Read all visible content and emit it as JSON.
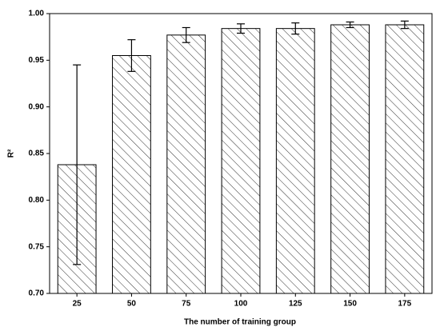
{
  "chart_data": {
    "type": "bar",
    "x_label": "The number of training group",
    "y_label": "R²",
    "categories": [
      "25",
      "50",
      "75",
      "100",
      "125",
      "150",
      "175"
    ],
    "values": [
      0.838,
      0.955,
      0.977,
      0.984,
      0.984,
      0.988,
      0.988
    ],
    "errors": [
      0.107,
      0.017,
      0.008,
      0.005,
      0.006,
      0.003,
      0.004
    ],
    "ylim": [
      0.7,
      1.0
    ],
    "yticks": [
      {
        "value": 0.7,
        "label": "0.70"
      },
      {
        "value": 0.75,
        "label": "0.75"
      },
      {
        "value": 0.8,
        "label": "0.80"
      },
      {
        "value": 0.85,
        "label": "0.85"
      },
      {
        "value": 0.9,
        "label": "0.90"
      },
      {
        "value": 0.95,
        "label": "0.95"
      },
      {
        "value": 1.0,
        "label": "1.00"
      }
    ],
    "color": "#000000",
    "hatch": true
  }
}
